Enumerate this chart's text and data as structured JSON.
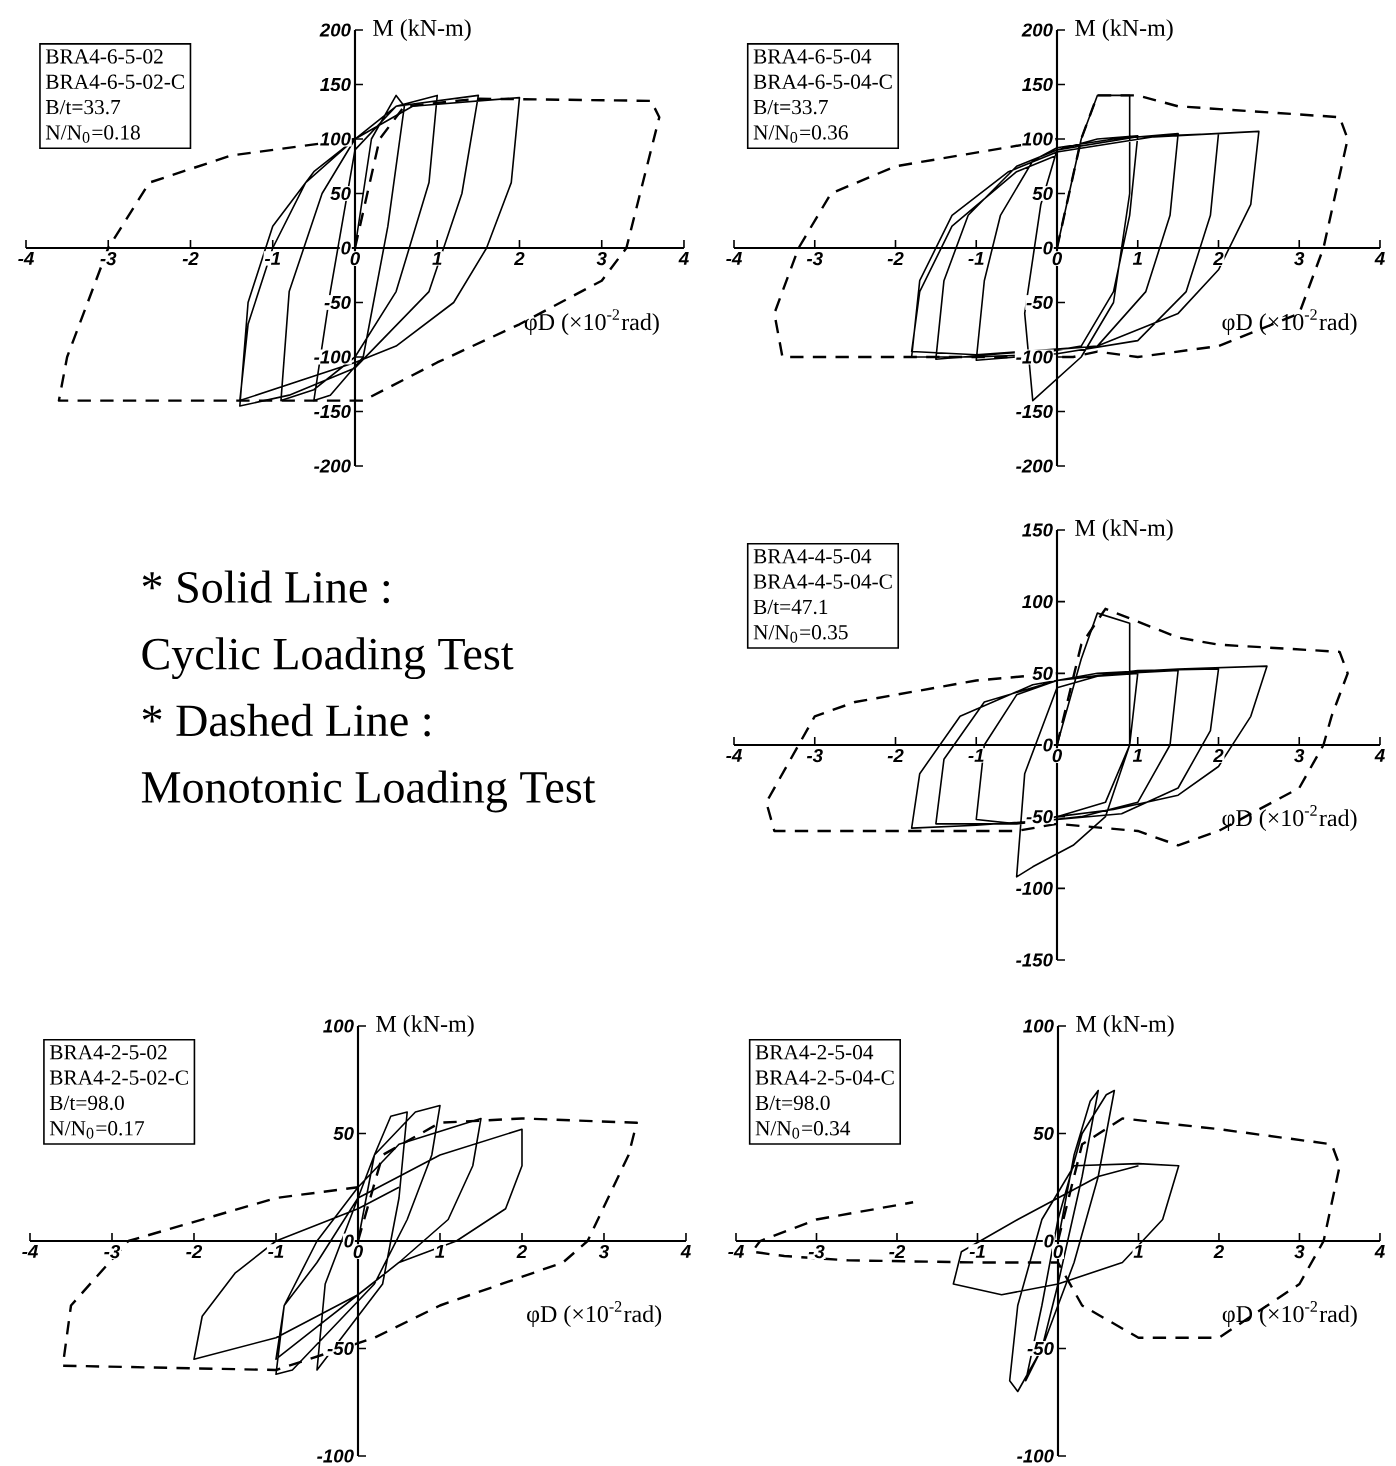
{
  "chart_data": [
    {
      "type": "line",
      "xlabel": "φD (×10$^{-2}$rad)",
      "ylabel": "M (kN-m)",
      "annotations": [
        "BRA4-6-5-02",
        "BRA4-6-5-02-C",
        "B/t=33.7",
        "N/N$_{0}$=0.18"
      ],
      "xlim": [
        -4,
        4
      ],
      "ylim": [
        -200,
        200
      ],
      "xticks": [
        -4,
        -3,
        -2,
        -1,
        0,
        1,
        2,
        3,
        4
      ],
      "yticks": [
        -200,
        -150,
        -100,
        -50,
        0,
        50,
        100,
        150,
        200
      ],
      "series": [
        {
          "color": "#000000",
          "line_style": "solid",
          "x": [
            0,
            0.2,
            0.5,
            0.6,
            0.4,
            0.1,
            -0.3,
            -0.5,
            -0.3,
            0,
            0.5,
            1,
            0.9,
            0.5,
            0,
            -0.5,
            -0.9,
            -0.8,
            -0.4,
            0,
            0.5,
            1.5,
            1.3,
            0.9,
            0,
            -0.8,
            -1.4,
            -1.3,
            -1,
            -0.5,
            0,
            0.7,
            2,
            1.9,
            1.6,
            1.2,
            0.5,
            0,
            -1.4,
            -1.3,
            -1,
            -0.6,
            0
          ],
          "values": [
            0,
            100,
            140,
            130,
            20,
            -100,
            -135,
            -140,
            -40,
            90,
            130,
            140,
            60,
            -40,
            -100,
            -130,
            -140,
            -40,
            50,
            100,
            130,
            140,
            50,
            -40,
            -110,
            -135,
            -145,
            -50,
            20,
            70,
            100,
            130,
            138,
            60,
            0,
            -50,
            -90,
            -105,
            -140,
            -70,
            0,
            60,
            100
          ]
        },
        {
          "color": "#000000",
          "line_style": "dashed",
          "x": [
            0,
            0.3,
            0.6,
            1.5,
            3.6,
            3.7,
            3.3,
            3,
            2,
            1,
            0.1,
            -3.6,
            -3.5,
            -3,
            -2.5,
            -1.5,
            0
          ],
          "values": [
            0,
            100,
            130,
            137,
            135,
            120,
            0,
            -30,
            -70,
            -105,
            -140,
            -140,
            -100,
            0,
            60,
            85,
            100
          ]
        }
      ]
    },
    {
      "type": "line",
      "xlabel": "φD (×10$^{-2}$rad)",
      "ylabel": "M (kN-m)",
      "annotations": [
        "BRA4-6-5-04",
        "BRA4-6-5-04-C",
        "B/t=33.7",
        "N/N$_{0}$=0.36"
      ],
      "xlim": [
        -4,
        4
      ],
      "ylim": [
        -200,
        200
      ],
      "xticks": [
        -4,
        -3,
        -2,
        -1,
        0,
        1,
        2,
        3,
        4
      ],
      "yticks": [
        -200,
        -150,
        -100,
        -50,
        0,
        50,
        100,
        150,
        200
      ],
      "series": [
        {
          "color": "#000000",
          "line_style": "solid",
          "x": [
            0,
            0.3,
            0.5,
            0.9,
            0.9,
            0.7,
            0.3,
            -0.3,
            -0.4,
            -0.2,
            0,
            0.5,
            1,
            0.9,
            0.7,
            0.3,
            -0.5,
            -1,
            -0.9,
            -0.7,
            -0.3,
            0,
            0.7,
            1.5,
            1.4,
            1.1,
            0.5,
            -0.7,
            -1.5,
            -1.4,
            -1.1,
            -0.5,
            0,
            1,
            2,
            1.9,
            1.6,
            1,
            0,
            -1,
            -1.8,
            -1.7,
            -1.3,
            -0.6,
            0,
            1.2,
            2.5,
            2.4,
            2,
            1.5,
            0.5,
            -1,
            -1.8,
            -1.7,
            -1.3,
            -0.5,
            0
          ],
          "values": [
            0,
            100,
            140,
            140,
            50,
            -50,
            -100,
            -140,
            -60,
            40,
            90,
            100,
            103,
            30,
            -40,
            -90,
            -100,
            -103,
            -30,
            30,
            80,
            92,
            100,
            105,
            30,
            -40,
            -90,
            -97,
            -102,
            -30,
            30,
            75,
            90,
            102,
            105,
            30,
            -40,
            -85,
            -97,
            -100,
            -100,
            -30,
            30,
            70,
            88,
            102,
            107,
            40,
            -20,
            -60,
            -90,
            -98,
            -95,
            -40,
            20,
            70,
            85
          ]
        },
        {
          "color": "#000000",
          "line_style": "dashed",
          "x": [
            0,
            0.3,
            0.5,
            1,
            1.5,
            3.5,
            3.6,
            3.3,
            3,
            2,
            1,
            0.5,
            0.2,
            -0.5,
            -3.4,
            -3.5,
            -3.2,
            -2.8,
            -2,
            0
          ],
          "values": [
            0,
            100,
            140,
            140,
            130,
            120,
            100,
            0,
            -60,
            -90,
            -100,
            -95,
            -100,
            -100,
            -100,
            -60,
            0,
            50,
            75,
            100
          ]
        }
      ]
    },
    {
      "type": "other",
      "annotations": [
        "* Solid Line :",
        "Cyclic Loading Test",
        "* Dashed Line :",
        "Monotonic Loading Test"
      ]
    },
    {
      "type": "line",
      "xlabel": "φD (×10$^{-2}$rad)",
      "ylabel": "M (kN-m)",
      "annotations": [
        "BRA4-4-5-04",
        "BRA4-4-5-04-C",
        "B/t=47.1",
        "N/N$_{0}$=0.35"
      ],
      "xlim": [
        -4,
        4
      ],
      "ylim": [
        -150,
        150
      ],
      "xticks": [
        -4,
        -3,
        -2,
        -1,
        0,
        1,
        2,
        3,
        4
      ],
      "yticks": [
        -150,
        -100,
        -50,
        0,
        50,
        100,
        150
      ],
      "series": [
        {
          "color": "#000000",
          "line_style": "solid",
          "x": [
            0,
            0.3,
            0.5,
            0.9,
            0.9,
            0.6,
            0.2,
            -0.3,
            -0.5,
            -0.4,
            0,
            0.5,
            1,
            0.9,
            0.6,
            0,
            -0.5,
            -1,
            -0.9,
            -0.5,
            0,
            0.8,
            1.5,
            1.4,
            1,
            0.3,
            -0.5,
            -1.5,
            -1.4,
            -0.9,
            0,
            1,
            2,
            1.9,
            1.5,
            0.8,
            0,
            -1,
            -1.8,
            -1.7,
            -1.2,
            -0.3,
            0.5,
            1.5,
            2.6,
            2.4,
            2,
            1.5,
            0.7,
            0
          ],
          "values": [
            0,
            60,
            92,
            85,
            0,
            -50,
            -70,
            -85,
            -92,
            -20,
            40,
            48,
            50,
            0,
            -40,
            -50,
            -55,
            -52,
            0,
            35,
            45,
            50,
            52,
            0,
            -40,
            -50,
            -55,
            -55,
            -10,
            30,
            45,
            52,
            53,
            10,
            -30,
            -48,
            -52,
            -56,
            -58,
            -20,
            20,
            42,
            50,
            53,
            55,
            20,
            -15,
            -35,
            -45,
            -50
          ]
        },
        {
          "color": "#000000",
          "line_style": "dashed",
          "x": [
            0,
            0.3,
            0.6,
            1.5,
            2,
            3.5,
            3.6,
            3.4,
            3.3,
            3,
            2,
            1.5,
            1,
            0,
            -0.5,
            -3.5,
            -3.6,
            -3.2,
            -3,
            -2.5,
            -1,
            0
          ],
          "values": [
            0,
            70,
            95,
            75,
            70,
            65,
            50,
            20,
            0,
            -30,
            -60,
            -70,
            -60,
            -55,
            -60,
            -60,
            -40,
            0,
            20,
            30,
            45,
            50
          ]
        }
      ]
    },
    {
      "type": "line",
      "xlabel": "φD (×10$^{-2}$rad)",
      "ylabel": "M (kN-m)",
      "annotations": [
        "BRA4-2-5-02",
        "BRA4-2-5-02-C",
        "B/t=98.0",
        "N/N$_{0}$=0.17"
      ],
      "xlim": [
        -4,
        4
      ],
      "ylim": [
        -100,
        100
      ],
      "xticks": [
        -4,
        -3,
        -2,
        -1,
        0,
        1,
        2,
        3,
        4
      ],
      "yticks": [
        -100,
        -50,
        0,
        50,
        100
      ],
      "series": [
        {
          "color": "#000000",
          "line_style": "solid",
          "x": [
            0,
            0.2,
            0.4,
            0.6,
            0.5,
            0.3,
            0,
            -0.3,
            -0.5,
            -0.4,
            -0.1,
            0.2,
            0.7,
            1,
            0.9,
            0.6,
            0.2,
            -0.3,
            -0.8,
            -1,
            -0.9,
            -0.5,
            0,
            0.5,
            1.5,
            1.4,
            1.1,
            0.5,
            0,
            -0.5,
            -1,
            -0.9,
            -0.5,
            0,
            1,
            2,
            2,
            1.8,
            1.2,
            0.5,
            0,
            -1,
            -2,
            -1.9,
            -1.5,
            -1,
            0,
            0.5
          ],
          "values": [
            0,
            40,
            58,
            60,
            20,
            -20,
            -35,
            -50,
            -60,
            -20,
            10,
            40,
            60,
            63,
            40,
            10,
            -20,
            -40,
            -60,
            -62,
            -30,
            0,
            25,
            45,
            57,
            35,
            10,
            -10,
            -25,
            -40,
            -55,
            -30,
            -10,
            20,
            40,
            52,
            35,
            15,
            0,
            -10,
            -25,
            -45,
            -55,
            -35,
            -15,
            0,
            15,
            25
          ]
        },
        {
          "color": "#000000",
          "line_style": "dashed",
          "x": [
            0,
            0.3,
            1,
            2,
            3.4,
            3.3,
            2.8,
            2.5,
            1,
            0.2,
            -1,
            -3.6,
            -3.5,
            -2.8,
            -1,
            0
          ],
          "values": [
            0,
            40,
            55,
            57,
            55,
            40,
            0,
            -10,
            -30,
            -45,
            -60,
            -58,
            -30,
            0,
            20,
            25
          ]
        }
      ]
    },
    {
      "type": "line",
      "xlabel": "φD (×10$^{-2}$rad)",
      "ylabel": "M (kN-m)",
      "annotations": [
        "BRA4-2-5-04",
        "BRA4-2-5-04-C",
        "B/t=98.0",
        "N/N$_{0}$=0.34"
      ],
      "xlim": [
        -4,
        4
      ],
      "ylim": [
        -100,
        100
      ],
      "xticks": [
        -4,
        -3,
        -2,
        -1,
        0,
        1,
        2,
        3,
        4
      ],
      "yticks": [
        -100,
        -50,
        0,
        50,
        100
      ],
      "series": [
        {
          "color": "#000000",
          "line_style": "solid",
          "x": [
            0,
            0.2,
            0.4,
            0.5,
            0.3,
            0,
            -0.2,
            -0.4,
            -0.2,
            0,
            0.3,
            0.6,
            0.7,
            0.5,
            0.2,
            -0.2,
            -0.5,
            -0.6,
            -0.5,
            -0.2,
            0.2,
            1,
            1.5,
            1.3,
            0.8,
            0,
            -0.7,
            -1.3,
            -1.2,
            -0.5,
            0.5,
            1
          ],
          "values": [
            0,
            40,
            65,
            70,
            30,
            -20,
            -50,
            -65,
            -30,
            10,
            50,
            68,
            70,
            30,
            -10,
            -50,
            -70,
            -65,
            -30,
            10,
            35,
            36,
            35,
            10,
            -10,
            -20,
            -25,
            -20,
            -5,
            10,
            30,
            35
          ]
        },
        {
          "color": "#000000",
          "line_style": "dashed",
          "x": [
            0,
            0.3,
            0.8,
            2,
            3.4,
            3.5,
            3.3,
            3,
            2,
            1,
            0.3,
            0,
            -1,
            -2.6,
            -3.4,
            -3.8,
            -3.7,
            -3,
            -1.8
          ],
          "values": [
            0,
            45,
            57,
            52,
            45,
            35,
            0,
            -20,
            -45,
            -45,
            -30,
            -10,
            -10,
            -9,
            -7,
            -5,
            0,
            10,
            18
          ]
        }
      ]
    }
  ]
}
